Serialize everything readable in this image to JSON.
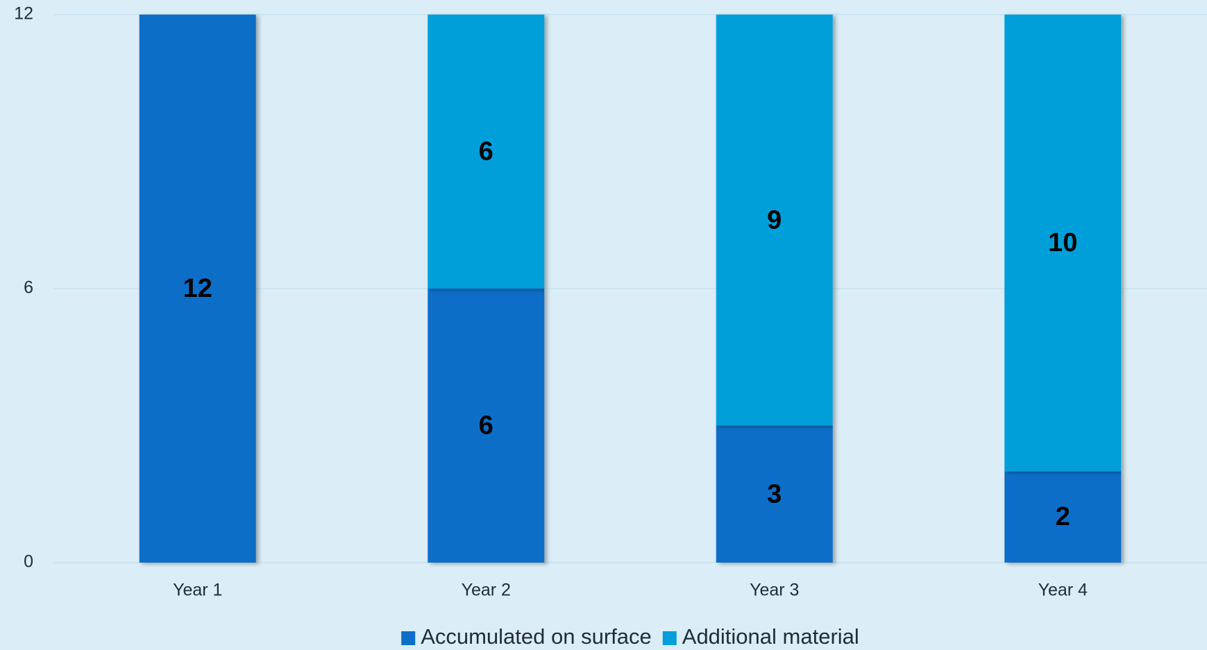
{
  "chart_data": {
    "type": "stacked_bar",
    "categories": [
      "Year 1",
      "Year 2",
      "Year 3",
      "Year 4"
    ],
    "series": [
      {
        "name": "Accumulated on surface",
        "color": "#0e6ec8",
        "values": [
          12,
          6,
          3,
          2
        ]
      },
      {
        "name": "Additional material",
        "color": "#039fda",
        "values": [
          0,
          6,
          9,
          10
        ]
      }
    ],
    "ylim": [
      0,
      12
    ],
    "yticks": [
      0,
      6,
      12
    ],
    "grid": true,
    "legend": "bottom"
  }
}
